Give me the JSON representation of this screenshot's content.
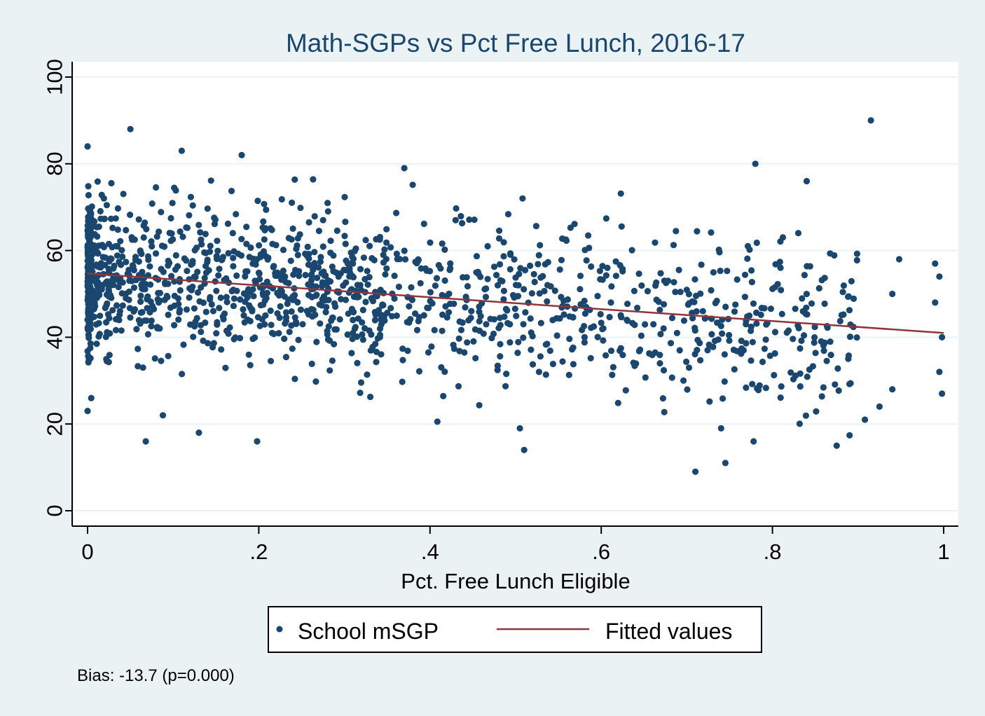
{
  "chart_data": {
    "type": "scatter",
    "title": "Math-SGPs vs Pct Free Lunch, 2016-17",
    "xlabel": "Pct. Free Lunch Eligible",
    "ylabel": "",
    "xlim": [
      0,
      1
    ],
    "ylim": [
      0,
      100
    ],
    "xticks": [
      0,
      0.2,
      0.4,
      0.6,
      0.8,
      1
    ],
    "xtick_labels": [
      "0",
      ".2",
      ".4",
      ".6",
      ".8",
      "1"
    ],
    "yticks": [
      0,
      20,
      40,
      60,
      80,
      100
    ],
    "ytick_labels": [
      "0",
      "20",
      "40",
      "60",
      "80",
      "100"
    ],
    "grid": true,
    "legend": {
      "position": "bottom",
      "entries": [
        "School mSGP",
        "Fitted values"
      ]
    },
    "series": [
      {
        "name": "School mSGP",
        "kind": "scatter",
        "color": "#1a476f",
        "n_points": 1500,
        "note": "Representative sample of schools; dense at x near 0, mean falls with x",
        "highlighted_points": [
          {
            "x": 0.915,
            "y": 90
          },
          {
            "x": 0.05,
            "y": 88
          },
          {
            "x": 0.0,
            "y": 84
          },
          {
            "x": 0.11,
            "y": 83
          },
          {
            "x": 0.18,
            "y": 82
          },
          {
            "x": 0.78,
            "y": 80
          },
          {
            "x": 0.37,
            "y": 79
          },
          {
            "x": 0.84,
            "y": 76
          },
          {
            "x": 0.0,
            "y": 23
          },
          {
            "x": 0.088,
            "y": 22
          },
          {
            "x": 0.068,
            "y": 16
          },
          {
            "x": 0.13,
            "y": 18
          },
          {
            "x": 0.198,
            "y": 16
          },
          {
            "x": 0.51,
            "y": 14
          },
          {
            "x": 0.505,
            "y": 19
          },
          {
            "x": 0.71,
            "y": 9
          },
          {
            "x": 0.745,
            "y": 11
          },
          {
            "x": 0.74,
            "y": 19
          },
          {
            "x": 0.875,
            "y": 15
          },
          {
            "x": 0.778,
            "y": 16
          },
          {
            "x": 0.908,
            "y": 21
          },
          {
            "x": 0.99,
            "y": 57
          },
          {
            "x": 0.995,
            "y": 54
          },
          {
            "x": 0.99,
            "y": 48
          },
          {
            "x": 0.998,
            "y": 40
          },
          {
            "x": 0.995,
            "y": 32
          },
          {
            "x": 0.998,
            "y": 27
          },
          {
            "x": 0.948,
            "y": 58
          },
          {
            "x": 0.94,
            "y": 50
          },
          {
            "x": 0.94,
            "y": 28
          },
          {
            "x": 0.925,
            "y": 24
          }
        ]
      },
      {
        "name": "Fitted values",
        "kind": "line",
        "color": "#90353b",
        "x": [
          0,
          1
        ],
        "y": [
          54.7,
          41.0
        ]
      }
    ],
    "annotations": [
      "Bias: -13.7 (p=0.000)"
    ]
  },
  "colors": {
    "background": "#eaf2f3",
    "plot_background": "#ffffff",
    "gridline": "#eaf2f3",
    "title": "#1a476f",
    "axis": "#000000",
    "marker": "#1a476f",
    "fit_line": "#90353b"
  },
  "legend_entries": {
    "scatter_label": "School mSGP",
    "line_label": "Fitted values"
  },
  "note_text": "Bias: -13.7 (p=0.000)"
}
